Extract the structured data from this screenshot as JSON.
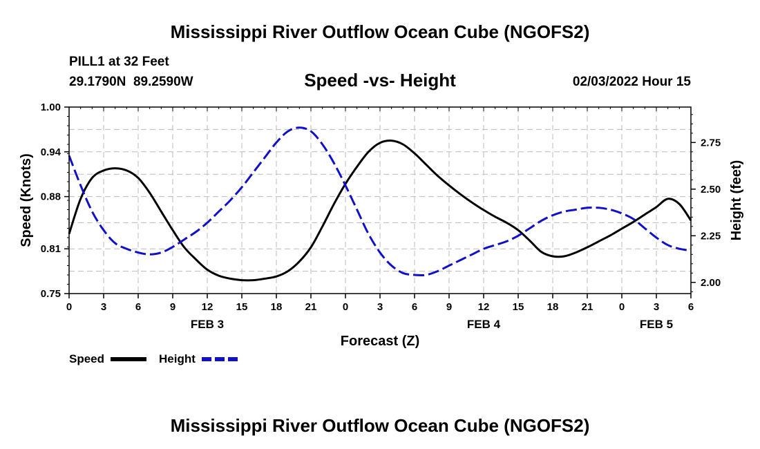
{
  "chart_data": {
    "type": "line",
    "title": "Mississippi River Outflow Ocean Cube (NGOFS2)",
    "subtitle": "Speed -vs- Height",
    "station": "PILL1 at 32 Feet",
    "coordinates": "29.1790N  89.2590W",
    "datetime": "02/03/2022 Hour 15",
    "xlabel": "Forecast (Z)",
    "ylabel_left": "Speed (Knots)",
    "ylabel_right": "Height (feet)",
    "x_ticks": [
      "0",
      "3",
      "6",
      "9",
      "12",
      "15",
      "18",
      "21",
      "0",
      "3",
      "6",
      "9",
      "12",
      "15",
      "18",
      "21",
      "0",
      "3",
      "6"
    ],
    "x_tick_hours": [
      0,
      3,
      6,
      9,
      12,
      15,
      18,
      21,
      24,
      27,
      30,
      33,
      36,
      39,
      42,
      45,
      48,
      51,
      54
    ],
    "date_labels": [
      {
        "label": "FEB 3",
        "hour": 12
      },
      {
        "label": "FEB 4",
        "hour": 36
      },
      {
        "label": "FEB 5",
        "hour": 51
      }
    ],
    "xlim": [
      0,
      54
    ],
    "y_left_ticks": [
      "0.75",
      "0.81",
      "0.88",
      "0.94",
      "1.00"
    ],
    "y_left_tick_values": [
      0.75,
      0.81,
      0.88,
      0.94,
      1.0
    ],
    "y_left_lim": [
      0.75,
      1.0
    ],
    "y_right_ticks": [
      "2.00",
      "2.25",
      "2.50",
      "2.75"
    ],
    "y_right_tick_values": [
      2.0,
      2.25,
      2.5,
      2.75
    ],
    "y_right_lim": [
      1.94,
      2.94
    ],
    "series": [
      {
        "name": "Speed",
        "axis": "left",
        "color": "#000000",
        "dash": "solid",
        "x": [
          0,
          1,
          2,
          3,
          4,
          5,
          6,
          7,
          8,
          9,
          10,
          11,
          12,
          13,
          14,
          15,
          16,
          17,
          18,
          19,
          20,
          21,
          22,
          23,
          24,
          25,
          26,
          27,
          28,
          29,
          30,
          31,
          32,
          33,
          34,
          35,
          36,
          37,
          38,
          39,
          40,
          41,
          42,
          43,
          44,
          45,
          46,
          47,
          48,
          49,
          50,
          51,
          52,
          53,
          54
        ],
        "values": [
          0.83,
          0.877,
          0.905,
          0.915,
          0.918,
          0.915,
          0.905,
          0.885,
          0.86,
          0.835,
          0.812,
          0.796,
          0.782,
          0.774,
          0.77,
          0.768,
          0.768,
          0.77,
          0.773,
          0.78,
          0.793,
          0.812,
          0.84,
          0.87,
          0.897,
          0.92,
          0.94,
          0.952,
          0.955,
          0.95,
          0.938,
          0.923,
          0.908,
          0.895,
          0.883,
          0.872,
          0.862,
          0.853,
          0.845,
          0.835,
          0.821,
          0.806,
          0.8,
          0.8,
          0.805,
          0.812,
          0.82,
          0.828,
          0.837,
          0.846,
          0.856,
          0.866,
          0.877,
          0.87,
          0.848
        ]
      },
      {
        "name": "Height",
        "axis": "right",
        "color": "#1010cc",
        "dash": "dashed",
        "x": [
          0,
          1,
          2,
          3,
          4,
          5,
          6,
          7,
          8,
          9,
          10,
          11,
          12,
          13,
          14,
          15,
          16,
          17,
          18,
          19,
          20,
          21,
          22,
          23,
          24,
          25,
          26,
          27,
          28,
          29,
          30,
          31,
          32,
          33,
          34,
          35,
          36,
          37,
          38,
          39,
          40,
          41,
          42,
          43,
          44,
          45,
          46,
          47,
          48,
          49,
          50,
          51,
          52,
          53,
          54
        ],
        "values": [
          2.68,
          2.52,
          2.38,
          2.28,
          2.21,
          2.18,
          2.16,
          2.15,
          2.16,
          2.19,
          2.23,
          2.27,
          2.32,
          2.38,
          2.44,
          2.51,
          2.59,
          2.67,
          2.75,
          2.81,
          2.83,
          2.81,
          2.74,
          2.64,
          2.52,
          2.39,
          2.26,
          2.16,
          2.09,
          2.05,
          2.04,
          2.04,
          2.06,
          2.09,
          2.12,
          2.15,
          2.18,
          2.2,
          2.22,
          2.25,
          2.29,
          2.33,
          2.36,
          2.38,
          2.39,
          2.4,
          2.4,
          2.39,
          2.37,
          2.34,
          2.29,
          2.24,
          2.2,
          2.18,
          2.17
        ]
      }
    ],
    "legend": [
      "Speed",
      "Height"
    ],
    "grid": true
  },
  "footer_title": "Mississippi River Outflow Ocean Cube (NGOFS2)"
}
